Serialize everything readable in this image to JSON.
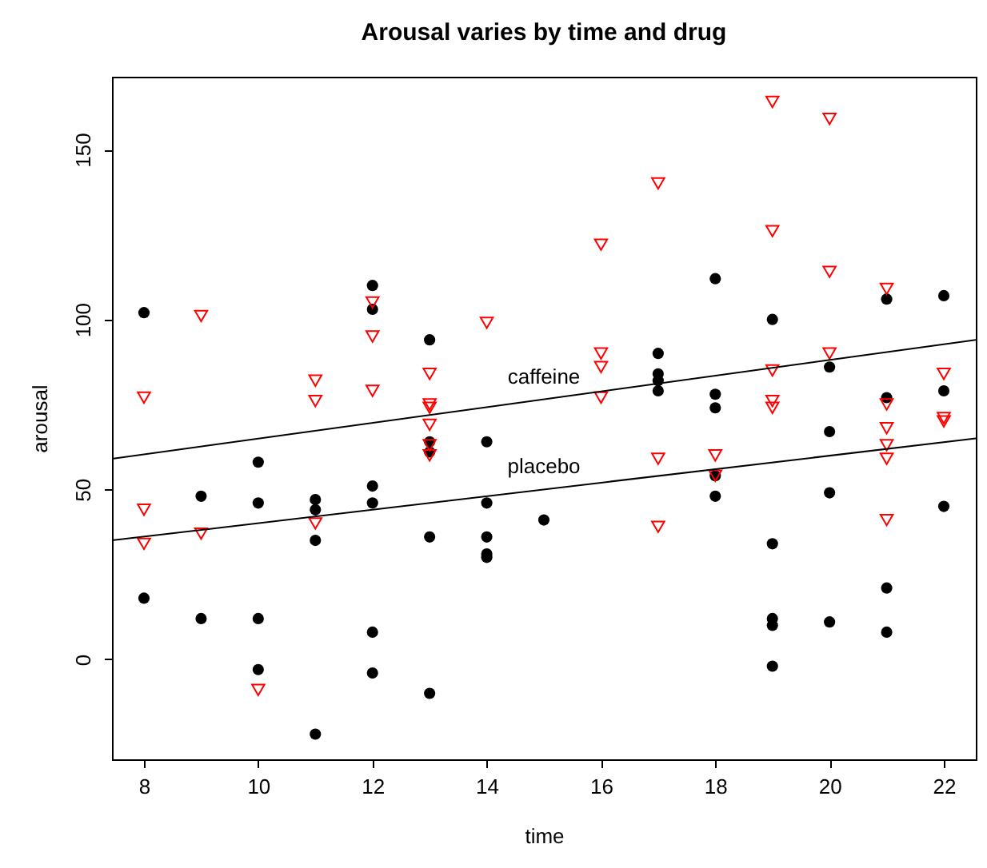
{
  "chart_data": {
    "type": "scatter",
    "title": "Arousal varies by time and drug",
    "xlabel": "time",
    "ylabel": "arousal",
    "xlim": [
      7.44,
      22.56
    ],
    "ylim": [
      -29.4,
      171.4
    ],
    "xticks": [
      8,
      10,
      12,
      14,
      16,
      18,
      20,
      22
    ],
    "yticks": [
      0,
      50,
      100,
      150
    ],
    "grid": false,
    "series": [
      {
        "marker": "circle",
        "color": "#000000",
        "x": [
          8,
          8,
          9,
          9,
          10,
          10,
          10,
          10,
          11,
          11,
          11,
          11,
          12,
          12,
          12,
          12,
          12,
          12,
          13,
          13,
          13,
          13,
          13,
          14,
          14,
          14,
          14,
          14,
          15,
          17,
          17,
          17,
          17,
          18,
          18,
          18,
          18,
          18,
          19,
          19,
          19,
          19,
          19,
          20,
          20,
          20,
          20,
          21,
          21,
          21,
          21,
          22,
          22,
          22
        ],
        "values": [
          102,
          18,
          48,
          12,
          58,
          46,
          12,
          -3,
          47,
          44,
          35,
          -22,
          110,
          103,
          51,
          46,
          8,
          -4,
          94,
          64,
          61,
          36,
          -10,
          64,
          46,
          36,
          31,
          30,
          41,
          90,
          84,
          82,
          79,
          112,
          78,
          74,
          54,
          48,
          100,
          34,
          12,
          10,
          -2,
          86,
          67,
          49,
          11,
          106,
          77,
          21,
          8,
          107,
          79,
          45
        ]
      },
      {
        "marker": "triangle",
        "color": "#ff0000",
        "x": [
          8,
          8,
          8,
          9,
          9,
          10,
          11,
          11,
          11,
          12,
          12,
          12,
          13,
          13,
          13,
          13,
          13,
          13,
          14,
          16,
          16,
          16,
          16,
          17,
          17,
          17,
          18,
          18,
          19,
          19,
          19,
          19,
          19,
          20,
          20,
          20,
          21,
          21,
          21,
          21,
          21,
          21,
          22,
          22,
          22
        ],
        "values": [
          77,
          44,
          34,
          101,
          37,
          -9,
          82,
          76,
          40,
          105,
          95,
          79,
          84,
          75,
          74,
          69,
          63,
          60,
          99,
          122,
          90,
          86,
          77,
          140,
          59,
          39,
          60,
          54,
          164,
          126,
          85,
          76,
          74,
          159,
          114,
          90,
          109,
          75,
          68,
          63,
          59,
          41,
          84,
          71,
          70
        ]
      },
      {
        "type": "line",
        "name": "caffeine",
        "color": "#000000",
        "x": [
          7.44,
          22.56
        ],
        "values": [
          59,
          94
        ]
      },
      {
        "type": "line",
        "name": "placebo",
        "color": "#000000",
        "x": [
          7.44,
          22.56
        ],
        "values": [
          35,
          65
        ]
      }
    ]
  }
}
